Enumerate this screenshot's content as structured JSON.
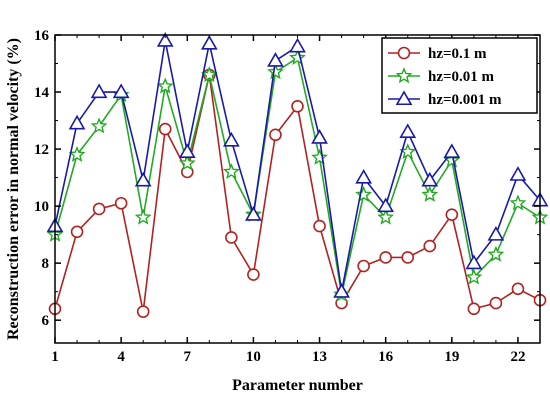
{
  "chart_data": {
    "type": "line",
    "xlabel": "Parameter number",
    "ylabel": "Reconstruction error in normal velocity (%)",
    "xlim": [
      1,
      23
    ],
    "ylim": [
      5.2,
      16
    ],
    "x_ticks": [
      1,
      4,
      7,
      10,
      13,
      16,
      19,
      22
    ],
    "y_ticks": [
      6,
      8,
      10,
      12,
      14,
      16
    ],
    "grid": false,
    "legend_position": "top-right",
    "x": [
      1,
      2,
      3,
      4,
      5,
      6,
      7,
      8,
      9,
      10,
      11,
      12,
      13,
      14,
      15,
      16,
      17,
      18,
      19,
      20,
      21,
      22,
      23
    ],
    "series": [
      {
        "name": "hz=0.1 m",
        "color": "#b22222",
        "marker": "circle",
        "values": [
          6.4,
          9.1,
          9.9,
          10.1,
          6.3,
          12.7,
          11.2,
          14.6,
          8.9,
          7.6,
          12.5,
          13.5,
          9.3,
          6.6,
          7.9,
          8.2,
          8.2,
          8.6,
          9.7,
          6.4,
          6.6,
          7.1,
          6.7
        ]
      },
      {
        "name": "hz=0.01 m",
        "color": "#22aa22",
        "marker": "star",
        "values": [
          9.0,
          11.8,
          12.8,
          13.9,
          9.6,
          14.2,
          11.5,
          14.6,
          11.2,
          9.7,
          14.7,
          15.2,
          11.7,
          6.9,
          10.4,
          9.6,
          11.9,
          10.4,
          11.6,
          7.5,
          8.3,
          10.1,
          9.6
        ]
      },
      {
        "name": "hz=0.001 m",
        "color": "#1a1aaa",
        "marker": "triangle",
        "values": [
          9.3,
          12.9,
          14.0,
          14.0,
          10.9,
          15.8,
          11.9,
          15.7,
          12.3,
          9.7,
          15.1,
          15.6,
          12.4,
          7.0,
          11.0,
          10.0,
          12.6,
          10.9,
          11.9,
          8.0,
          9.0,
          11.1,
          10.2
        ]
      }
    ]
  }
}
